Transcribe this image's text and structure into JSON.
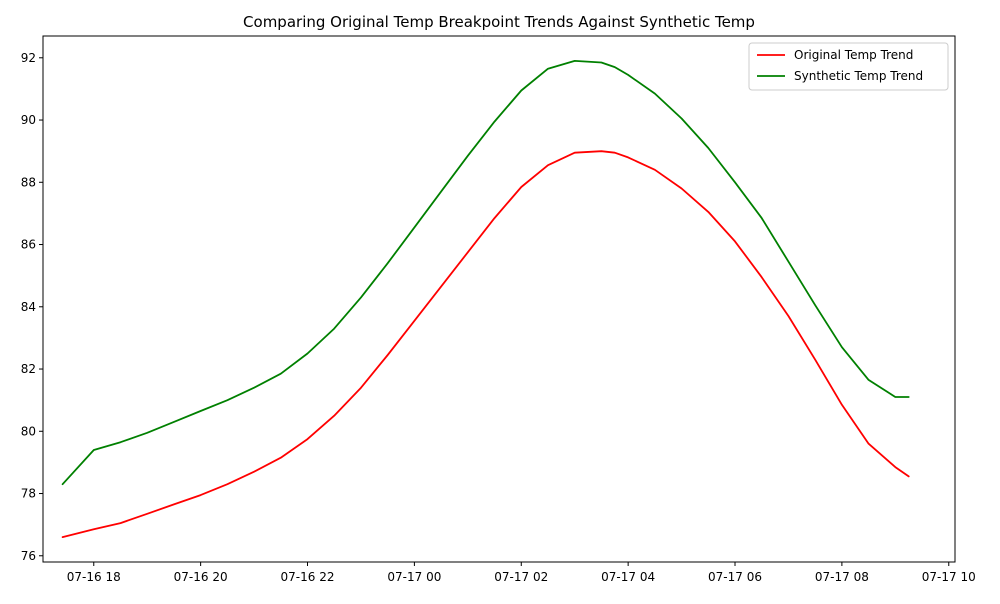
{
  "chart_data": {
    "type": "line",
    "title": "Comparing Original Temp Breakpoint Trends Against Synthetic Temp",
    "xlabel": "",
    "ylabel": "",
    "grid": false,
    "legend_position": "top-right",
    "x_type": "datetime",
    "xlim": [
      "07-16 17:03",
      "07-17 10:07"
    ],
    "ylim": [
      75.8,
      92.7
    ],
    "x_ticks": [
      "07-16 18",
      "07-16 20",
      "07-16 22",
      "07-17 00",
      "07-17 02",
      "07-17 04",
      "07-17 06",
      "07-17 08",
      "07-17 10"
    ],
    "y_ticks": [
      76,
      78,
      80,
      82,
      84,
      86,
      88,
      90,
      92
    ],
    "x": [
      "07-16 17:25",
      "07-16 18:00",
      "07-16 18:30",
      "07-16 19:00",
      "07-16 19:30",
      "07-16 20:00",
      "07-16 20:30",
      "07-16 21:00",
      "07-16 21:30",
      "07-16 22:00",
      "07-16 22:30",
      "07-16 23:00",
      "07-16 23:30",
      "07-17 00:00",
      "07-17 00:30",
      "07-17 01:00",
      "07-17 01:30",
      "07-17 02:00",
      "07-17 02:30",
      "07-17 03:00",
      "07-17 03:30",
      "07-17 03:45",
      "07-17 04:00",
      "07-17 04:30",
      "07-17 05:00",
      "07-17 05:30",
      "07-17 06:00",
      "07-17 06:30",
      "07-17 07:00",
      "07-17 07:30",
      "07-17 08:00",
      "07-17 08:30",
      "07-17 09:00",
      "07-17 09:15"
    ],
    "series": [
      {
        "name": "Original Temp Trend",
        "color": "#ff0000",
        "values": [
          76.6,
          76.85,
          77.05,
          77.35,
          77.65,
          77.95,
          78.3,
          78.7,
          79.15,
          79.75,
          80.5,
          81.4,
          82.45,
          83.55,
          84.65,
          85.75,
          86.85,
          87.85,
          88.55,
          88.95,
          89.0,
          88.95,
          88.8,
          88.4,
          87.8,
          87.05,
          86.1,
          84.95,
          83.7,
          82.3,
          80.85,
          79.6,
          78.85,
          78.55
        ]
      },
      {
        "name": "Synthetic Temp Trend",
        "color": "#008000",
        "values": [
          78.3,
          79.4,
          79.65,
          79.95,
          80.3,
          80.65,
          81.0,
          81.4,
          81.85,
          82.5,
          83.3,
          84.3,
          85.4,
          86.55,
          87.7,
          88.85,
          89.95,
          90.95,
          91.65,
          91.9,
          91.85,
          91.7,
          91.45,
          90.85,
          90.05,
          89.1,
          88.0,
          86.85,
          85.45,
          84.05,
          82.7,
          81.65,
          81.1,
          81.1
        ]
      }
    ]
  }
}
